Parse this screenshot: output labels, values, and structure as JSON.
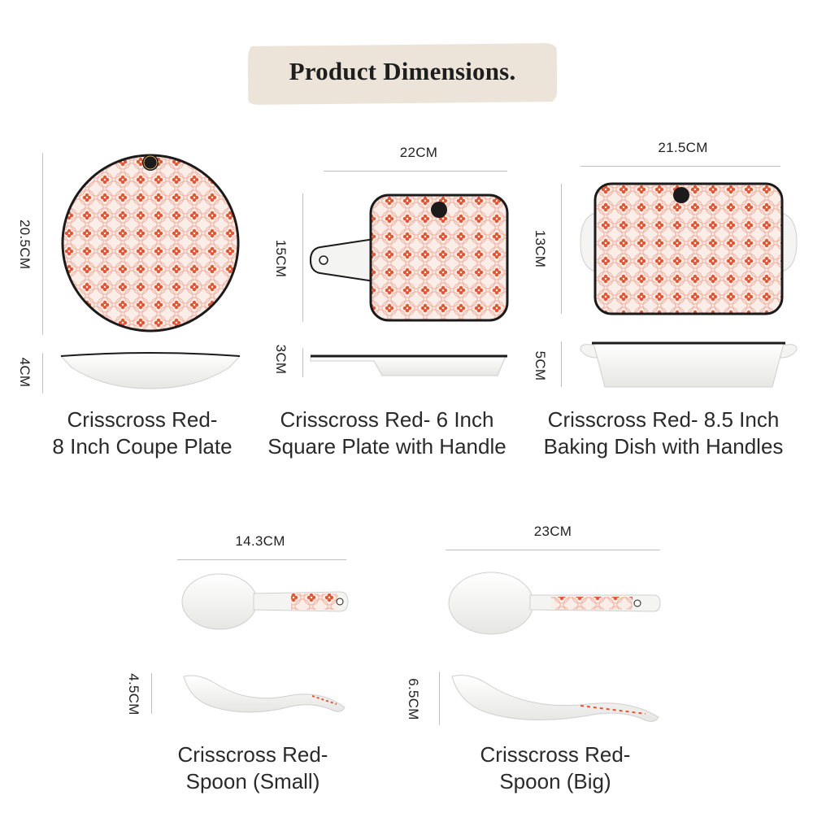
{
  "title": "Product Dimensions.",
  "products": [
    {
      "id": "coupe-plate",
      "caption_line1": "Crisscross Red-",
      "caption_line2": "8 Inch Coupe Plate",
      "diameter": "20.5CM",
      "height": "4CM"
    },
    {
      "id": "square-plate",
      "caption_line1": "Crisscross Red- 6 Inch",
      "caption_line2": "Square Plate with Handle",
      "width": "22CM",
      "depth": "15CM",
      "height": "3CM"
    },
    {
      "id": "baking-dish",
      "caption_line1": "Crisscross Red- 8.5 Inch",
      "caption_line2": "Baking Dish with Handles",
      "width": "21.5CM",
      "depth": "13CM",
      "height": "5CM"
    },
    {
      "id": "spoon-small",
      "caption_line1": "Crisscross Red-",
      "caption_line2": "Spoon (Small)",
      "length": "14.3CM",
      "height": "4.5CM"
    },
    {
      "id": "spoon-big",
      "caption_line1": "Crisscross Red-",
      "caption_line2": "Spoon (Big)",
      "length": "23CM",
      "height": "6.5CM"
    }
  ],
  "colors": {
    "pattern_red": "#e8532f",
    "pattern_pink": "#f3b6a6",
    "rim_dark": "#1b1b1b",
    "porcelain": "#f4f4f2",
    "title_band": "#ece4d8"
  }
}
